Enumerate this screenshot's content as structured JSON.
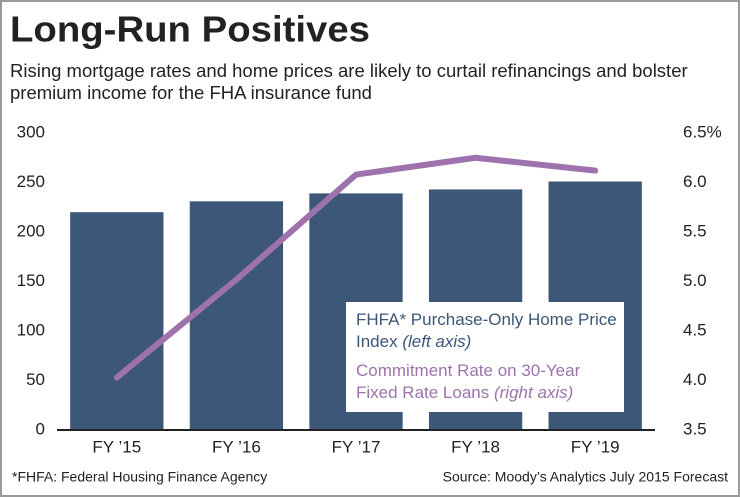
{
  "chart_data": {
    "type": "bar_line",
    "title": "Long-Run Positives",
    "subtitle": "Rising mortgage rates and home prices are likely to curtail refinancings and bolster premium income for the FHA insurance fund",
    "footnote": "*FHFA: Federal Housing Finance Agency",
    "source": "Source: Moody’s Analytics July 2015 Forecast",
    "categories": [
      "FY ’15",
      "FY ’16",
      "FY ’17",
      "FY ’18",
      "FY ’19"
    ],
    "series": [
      {
        "name": "FHFA* Purchase-Only Home Price Index",
        "axis_note": "(left axis)",
        "type": "bar",
        "color": "#3c5778",
        "values": [
          220,
          231,
          239,
          243,
          251
        ]
      },
      {
        "name": "Commitment Rate on 30-Year Fixed Rate Loans",
        "axis_note": "(right axis)",
        "type": "line",
        "axis": "y2",
        "color": "#9d72ad",
        "values": [
          4.03,
          5.02,
          6.08,
          6.25,
          6.12
        ]
      }
    ],
    "ylim": [
      0,
      300
    ],
    "yticks": [
      0,
      50,
      100,
      150,
      200,
      250,
      300
    ],
    "y2lim": [
      3.5,
      6.5
    ],
    "y2ticks": [
      3.5,
      {
        "value": 4,
        "label": "4.0"
      },
      4.5,
      {
        "value": 5,
        "label": "5.0"
      },
      5.5,
      {
        "value": 6,
        "label": "6.0"
      },
      {
        "value": 6.5,
        "label": "6.5%"
      }
    ]
  }
}
